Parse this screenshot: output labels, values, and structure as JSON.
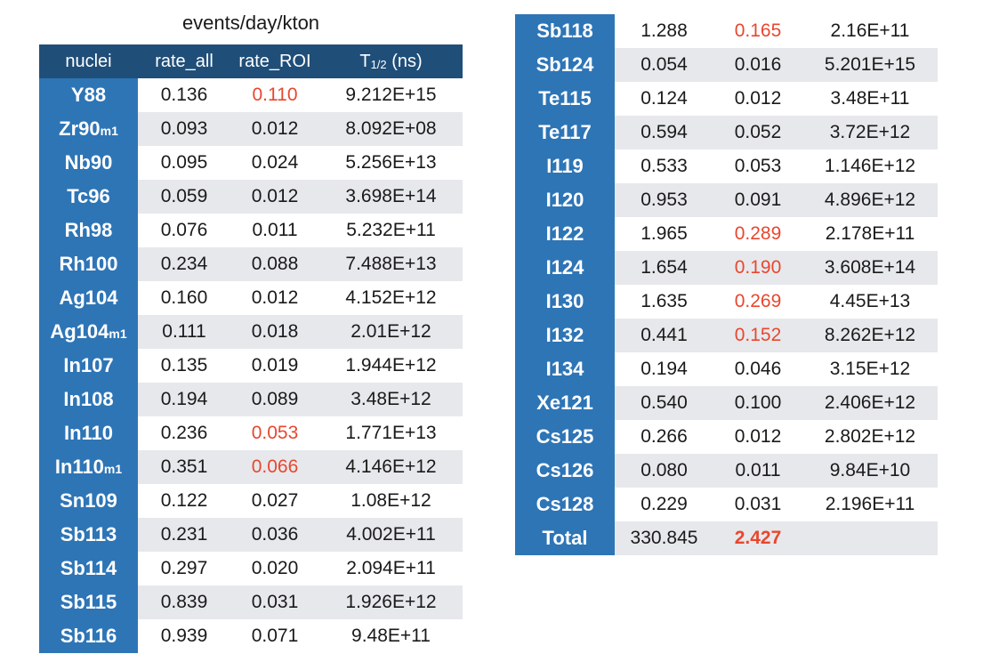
{
  "caption": "events/day/kton",
  "colors": {
    "header": "#1f4e79",
    "nuclei": "#2e75b6",
    "stripe": "#e7e8ec",
    "highlight": "#e8472e"
  },
  "chart_data": {
    "type": "table",
    "title": "events/day/kton",
    "headers": {
      "nuclei": "nuclei",
      "rate_all": "rate_all",
      "rate_roi": "rate_ROI",
      "t_half": "T",
      "t_half_sub": "1/2",
      "t_half_unit": " (ns)"
    },
    "rows_left": [
      {
        "name": "Y88",
        "suffix": "",
        "rate_all": "0.136",
        "rate_roi": "0.110",
        "t_half": "9.212E+15",
        "hl": true
      },
      {
        "name": "Zr90",
        "suffix": "m1",
        "rate_all": "0.093",
        "rate_roi": "0.012",
        "t_half": "8.092E+08",
        "hl": false
      },
      {
        "name": "Nb90",
        "suffix": "",
        "rate_all": "0.095",
        "rate_roi": "0.024",
        "t_half": "5.256E+13",
        "hl": false
      },
      {
        "name": "Tc96",
        "suffix": "",
        "rate_all": "0.059",
        "rate_roi": "0.012",
        "t_half": "3.698E+14",
        "hl": false
      },
      {
        "name": "Rh98",
        "suffix": "",
        "rate_all": "0.076",
        "rate_roi": "0.011",
        "t_half": "5.232E+11",
        "hl": false
      },
      {
        "name": "Rh100",
        "suffix": "",
        "rate_all": "0.234",
        "rate_roi": "0.088",
        "t_half": "7.488E+13",
        "hl": false
      },
      {
        "name": "Ag104",
        "suffix": "",
        "rate_all": "0.160",
        "rate_roi": "0.012",
        "t_half": "4.152E+12",
        "hl": false
      },
      {
        "name": "Ag104",
        "suffix": "m1",
        "rate_all": "0.111",
        "rate_roi": "0.018",
        "t_half": "2.01E+12",
        "hl": false
      },
      {
        "name": "In107",
        "suffix": "",
        "rate_all": "0.135",
        "rate_roi": "0.019",
        "t_half": "1.944E+12",
        "hl": false
      },
      {
        "name": "In108",
        "suffix": "",
        "rate_all": "0.194",
        "rate_roi": "0.089",
        "t_half": "3.48E+12",
        "hl": false
      },
      {
        "name": "In110",
        "suffix": "",
        "rate_all": "0.236",
        "rate_roi": "0.053",
        "t_half": "1.771E+13",
        "hl": true
      },
      {
        "name": "In110",
        "suffix": "m1",
        "rate_all": "0.351",
        "rate_roi": "0.066",
        "t_half": "4.146E+12",
        "hl": true
      },
      {
        "name": "Sn109",
        "suffix": "",
        "rate_all": "0.122",
        "rate_roi": "0.027",
        "t_half": "1.08E+12",
        "hl": false
      },
      {
        "name": "Sb113",
        "suffix": "",
        "rate_all": "0.231",
        "rate_roi": "0.036",
        "t_half": "4.002E+11",
        "hl": false
      },
      {
        "name": "Sb114",
        "suffix": "",
        "rate_all": "0.297",
        "rate_roi": "0.020",
        "t_half": "2.094E+11",
        "hl": false
      },
      {
        "name": "Sb115",
        "suffix": "",
        "rate_all": "0.839",
        "rate_roi": "0.031",
        "t_half": "1.926E+12",
        "hl": false
      },
      {
        "name": "Sb116",
        "suffix": "",
        "rate_all": "0.939",
        "rate_roi": "0.071",
        "t_half": "9.48E+11",
        "hl": false
      }
    ],
    "rows_right": [
      {
        "name": "Sb118",
        "suffix": "",
        "rate_all": "1.288",
        "rate_roi": "0.165",
        "t_half": "2.16E+11",
        "hl": true
      },
      {
        "name": "Sb124",
        "suffix": "",
        "rate_all": "0.054",
        "rate_roi": "0.016",
        "t_half": "5.201E+15",
        "hl": false
      },
      {
        "name": "Te115",
        "suffix": "",
        "rate_all": "0.124",
        "rate_roi": "0.012",
        "t_half": "3.48E+11",
        "hl": false
      },
      {
        "name": "Te117",
        "suffix": "",
        "rate_all": "0.594",
        "rate_roi": "0.052",
        "t_half": "3.72E+12",
        "hl": false
      },
      {
        "name": "I119",
        "suffix": "",
        "rate_all": "0.533",
        "rate_roi": "0.053",
        "t_half": "1.146E+12",
        "hl": false
      },
      {
        "name": "I120",
        "suffix": "",
        "rate_all": "0.953",
        "rate_roi": "0.091",
        "t_half": "4.896E+12",
        "hl": false
      },
      {
        "name": "I122",
        "suffix": "",
        "rate_all": "1.965",
        "rate_roi": "0.289",
        "t_half": "2.178E+11",
        "hl": true
      },
      {
        "name": "I124",
        "suffix": "",
        "rate_all": "1.654",
        "rate_roi": "0.190",
        "t_half": "3.608E+14",
        "hl": true
      },
      {
        "name": "I130",
        "suffix": "",
        "rate_all": "1.635",
        "rate_roi": "0.269",
        "t_half": "4.45E+13",
        "hl": true
      },
      {
        "name": "I132",
        "suffix": "",
        "rate_all": "0.441",
        "rate_roi": "0.152",
        "t_half": "8.262E+12",
        "hl": true
      },
      {
        "name": "I134",
        "suffix": "",
        "rate_all": "0.194",
        "rate_roi": "0.046",
        "t_half": "3.15E+12",
        "hl": false
      },
      {
        "name": "Xe121",
        "suffix": "",
        "rate_all": "0.540",
        "rate_roi": "0.100",
        "t_half": "2.406E+12",
        "hl": false
      },
      {
        "name": "Cs125",
        "suffix": "",
        "rate_all": "0.266",
        "rate_roi": "0.012",
        "t_half": "2.802E+12",
        "hl": false
      },
      {
        "name": "Cs126",
        "suffix": "",
        "rate_all": "0.080",
        "rate_roi": "0.011",
        "t_half": "9.84E+10",
        "hl": false
      },
      {
        "name": "Cs128",
        "suffix": "",
        "rate_all": "0.229",
        "rate_roi": "0.031",
        "t_half": "2.196E+11",
        "hl": false
      }
    ],
    "total": {
      "name": "Total",
      "rate_all": "330.845",
      "rate_roi": "2.427",
      "t_half": ""
    }
  }
}
